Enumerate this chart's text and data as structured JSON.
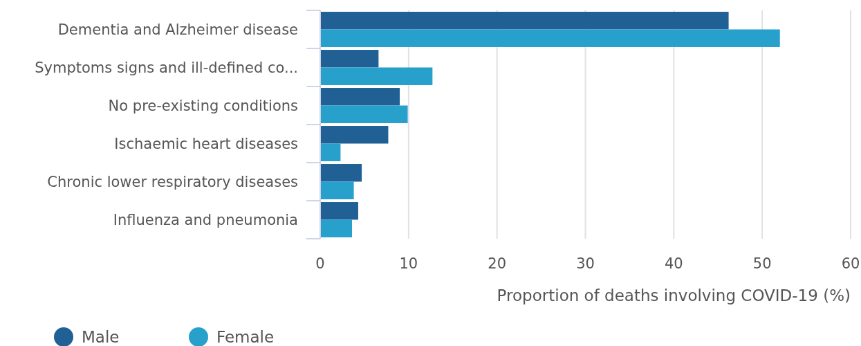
{
  "chart_data": {
    "type": "bar",
    "orientation": "horizontal",
    "xlabel": "Proportion of deaths involving COVID-19 (%)",
    "categories": [
      "Dementia and Alzheimer disease",
      "Symptoms signs and ill-defined co...",
      "No pre-existing conditions",
      "Ischaemic heart diseases",
      "Chronic lower respiratory diseases",
      "Influenza and pneumonia"
    ],
    "series": [
      {
        "name": "Male",
        "color": "#206095",
        "values": [
          46.2,
          6.6,
          9.0,
          7.7,
          4.7,
          4.3
        ]
      },
      {
        "name": "Female",
        "color": "#27a0cc",
        "values": [
          52.0,
          12.7,
          9.9,
          2.3,
          3.8,
          3.6
        ]
      }
    ],
    "xlim": [
      0,
      60
    ],
    "xticks": [
      0,
      10,
      20,
      30,
      40,
      50,
      60
    ],
    "grid": "x",
    "legend": "bottom left"
  }
}
